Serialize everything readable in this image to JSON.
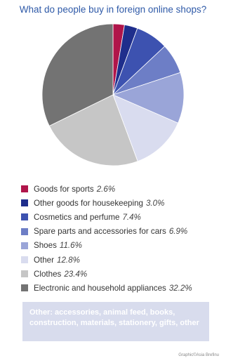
{
  "chart_data": {
    "type": "pie",
    "title": "What do people buy in foreign online shops?",
    "unit": "%",
    "slices": [
      {
        "label": "Goods for sports",
        "display_value": "2.6%",
        "value": 2.6,
        "color": "#b0154a"
      },
      {
        "label": "Other goods for housekeeping",
        "display_value": "3.0%",
        "value": 3.0,
        "color": "#1f2e8c"
      },
      {
        "label": "Cosmetics and perfume",
        "display_value": "7.4%",
        "value": 7.4,
        "color": "#3d52b0"
      },
      {
        "label": "Spare parts and accessories for cars",
        "display_value": "6.9%",
        "value": 6.9,
        "color": "#6d7ec6"
      },
      {
        "label": "Shoes",
        "display_value": "11.6%",
        "value": 11.6,
        "color": "#9aa5d8"
      },
      {
        "label": "Other",
        "display_value": "12.8%",
        "value": 12.8,
        "color": "#d9dcef"
      },
      {
        "label": "Clothes",
        "display_value": "23.4%",
        "value": 23.4,
        "color": "#c6c6c6"
      },
      {
        "label": "Electronic and household appliances",
        "display_value": "32.2%",
        "value": 32.2,
        "color": "#737373"
      }
    ]
  },
  "note": "Other: accessories, animal feed, books, construction, materials, stationery, gifts, other",
  "credit": "Graphic©Asia Brefinu"
}
